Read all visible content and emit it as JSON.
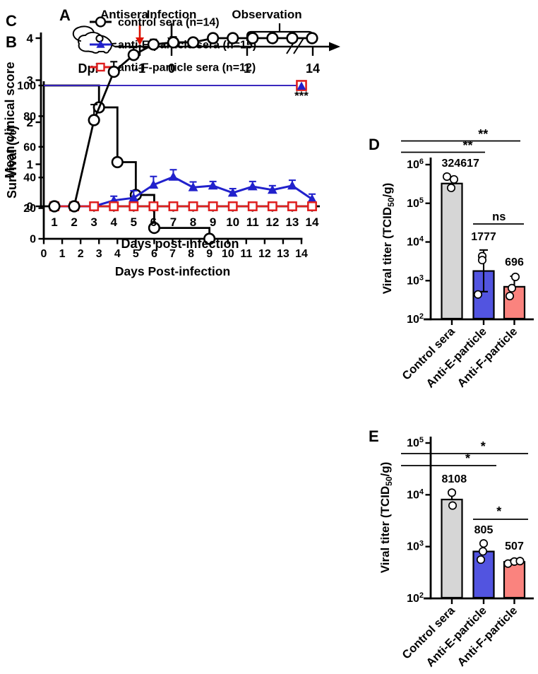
{
  "colors": {
    "black": "#000000",
    "blue_line": "#2121CC",
    "blue_bar": "#5254E0",
    "red_line": "#DF1F1F",
    "salmon_bar": "#FA837E",
    "gray_bar": "#D6D6D6",
    "antisera_red": "#DD1100"
  },
  "timeline": {
    "panel_label": "A",
    "antisera_label": "Antisera",
    "infection_label": "Infection",
    "observation_label": "Observation",
    "axis_label": "Dpi",
    "ticks": [
      "-1",
      "0",
      "1",
      "14"
    ]
  },
  "chart_data": [
    {
      "id": "B",
      "panel_label": "B",
      "type": "line",
      "subtype": "kaplan-meier-step",
      "title": "",
      "xlabel": "Days Post-infection",
      "ylabel": "Survival (%)",
      "xlim": [
        0,
        14
      ],
      "ylim": [
        0,
        100
      ],
      "xticks": [
        0,
        1,
        2,
        3,
        4,
        5,
        6,
        7,
        8,
        9,
        10,
        11,
        12,
        13,
        14
      ],
      "yticks": [
        0,
        20,
        40,
        60,
        80,
        100
      ],
      "legend_position": "above-plot",
      "legend": [
        {
          "label": "control sera (n=14)",
          "marker": "circle-open",
          "color": "#000000"
        },
        {
          "label": "anti-E-particle sera (n=15)",
          "marker": "triangle-filled",
          "color": "#2121CC"
        },
        {
          "label": "anti-F-particle sera (n=12)",
          "marker": "square-open",
          "color": "#DF1F1F"
        }
      ],
      "series": [
        {
          "name": "control sera",
          "marker": "circle-open",
          "color": "#000000",
          "step_points": [
            [
              0,
              100
            ],
            [
              3,
              85.7
            ],
            [
              4,
              50
            ],
            [
              5,
              28.6
            ],
            [
              6,
              7.1
            ],
            [
              9,
              0
            ]
          ]
        },
        {
          "name": "anti-F-particle sera",
          "marker": "square-open",
          "color": "#DF1F1F",
          "x": [
            0,
            14
          ],
          "y": [
            100,
            100
          ]
        },
        {
          "name": "anti-E-particle sera",
          "marker": "triangle-filled",
          "color": "#2121CC",
          "x": [
            0,
            14
          ],
          "y": [
            100,
            100
          ]
        }
      ],
      "annotation": {
        "text": "***",
        "at_x": 14,
        "at_y": 100
      }
    },
    {
      "id": "C",
      "panel_label": "C",
      "type": "line",
      "title": "",
      "xlabel": "Days post-infection",
      "ylabel": "Mean clinical score",
      "x": [
        1,
        2,
        3,
        4,
        5,
        6,
        7,
        8,
        9,
        10,
        11,
        12,
        13,
        14
      ],
      "ylim": [
        0,
        4
      ],
      "yticks": [
        0,
        1,
        2,
        3,
        4
      ],
      "grid": false,
      "series": [
        {
          "name": "control sera",
          "marker": "circle-open",
          "color": "#000000",
          "values": [
            0,
            0,
            2.05,
            3.2,
            3.6,
            3.85,
            3.9,
            3.9,
            4,
            4,
            4,
            4,
            4,
            4
          ],
          "errors": [
            0,
            0,
            0.37,
            0.24,
            0.18,
            0.12,
            0.13,
            0.1,
            0.05,
            0,
            0,
            0,
            0,
            0
          ]
        },
        {
          "name": "anti-E-particle sera",
          "marker": "triangle-filled",
          "color": "#2121CC",
          "values": [
            0,
            0,
            0,
            0.14,
            0.2,
            0.51,
            0.7,
            0.45,
            0.49,
            0.32,
            0.47,
            0.39,
            0.49,
            0.17
          ],
          "errors": [
            0,
            0,
            0,
            0.1,
            0.17,
            0.2,
            0.17,
            0.13,
            0.1,
            0.1,
            0.12,
            0.1,
            0.13,
            0.12
          ]
        },
        {
          "name": "anti-F-particle sera",
          "marker": "square-open",
          "color": "#DF1F1F",
          "values": [
            0,
            0,
            0,
            0,
            0,
            0,
            0,
            0,
            0,
            0,
            0,
            0,
            0,
            0
          ],
          "errors": [
            0,
            0,
            0,
            0,
            0,
            0,
            0,
            0,
            0,
            0,
            0,
            0,
            0,
            0
          ]
        }
      ]
    },
    {
      "id": "D",
      "panel_label": "D",
      "type": "bar",
      "yscale": "log",
      "ylabel_parts": {
        "pre": "Viral titer (TCID",
        "sub": "50",
        "post": "/g)"
      },
      "y_exponents": [
        2,
        3,
        4,
        5,
        6
      ],
      "categories": [
        "Control sera",
        "Anti-E-particle",
        "Anti-F-particle"
      ],
      "values": [
        324617,
        1777,
        696
      ],
      "value_labels": [
        "324617",
        "1777",
        "696"
      ],
      "bar_colors": [
        "#D6D6D6",
        "#5254E0",
        "#FA837E"
      ],
      "error_high": [
        480000,
        6200,
        1300
      ],
      "error_low": [
        null,
        520,
        null
      ],
      "points": [
        [
          [
            -7,
            490000
          ],
          [
            3,
            415000
          ],
          [
            -1,
            250000
          ]
        ],
        [
          [
            -2,
            4300
          ],
          [
            -2,
            3400
          ],
          [
            -8,
            440
          ]
        ],
        [
          [
            1.5,
            1250
          ],
          [
            -3.5,
            640
          ],
          [
            -6.5,
            400
          ]
        ]
      ],
      "significance": [
        {
          "pair": [
            0,
            2
          ],
          "label": "**"
        },
        {
          "pair": [
            0,
            1
          ],
          "label": "**"
        },
        {
          "pair": [
            1,
            2
          ],
          "label": "ns"
        }
      ]
    },
    {
      "id": "E",
      "panel_label": "E",
      "type": "bar",
      "yscale": "log",
      "ylabel_parts": {
        "pre": "Viral titer (TCID",
        "sub": "50",
        "post": "/g)"
      },
      "y_exponents": [
        2,
        3,
        4,
        5
      ],
      "categories": [
        "Control sera",
        "Anti-E-particle",
        "Anti-F-particle"
      ],
      "values": [
        8108,
        805,
        507
      ],
      "value_labels": [
        "8108",
        "805",
        "507"
      ],
      "bar_colors": [
        "#D6D6D6",
        "#5254E0",
        "#FA837E"
      ],
      "error_high": [
        11200,
        1150,
        560
      ],
      "error_low": [
        null,
        null,
        null
      ],
      "points": [
        [
          [
            0,
            11000
          ],
          [
            1,
            6200
          ]
        ],
        [
          [
            0,
            1150
          ],
          [
            -1,
            810
          ],
          [
            -4,
            560
          ]
        ],
        [
          [
            -9,
            470
          ],
          [
            0,
            515
          ],
          [
            8,
            525
          ]
        ]
      ],
      "significance": [
        {
          "pair": [
            0,
            2
          ],
          "label": "*"
        },
        {
          "pair": [
            0,
            1
          ],
          "label": "*"
        },
        {
          "pair": [
            1,
            2
          ],
          "label": "*"
        }
      ]
    }
  ]
}
